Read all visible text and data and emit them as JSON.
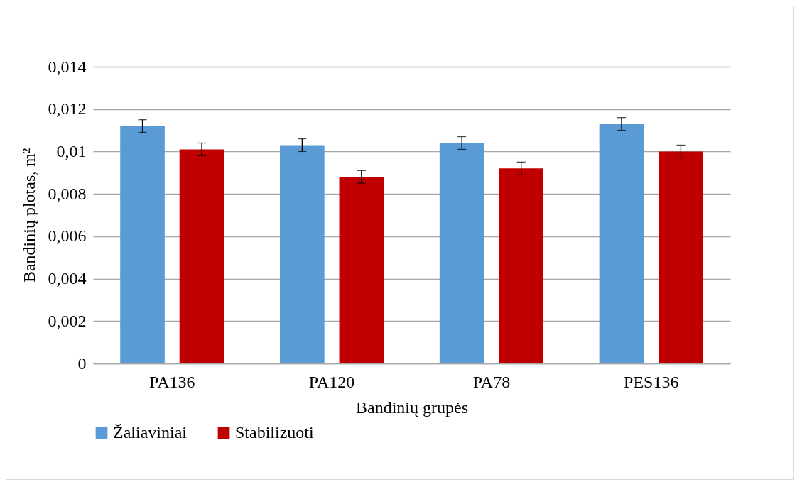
{
  "chart_data": {
    "type": "bar",
    "xlabel": "Bandinių grupės",
    "ylabel": "Bandinių plotas, m²",
    "categories": [
      "PA136",
      "PA120",
      "PA78",
      "PES136"
    ],
    "series": [
      {
        "name": "Žaliaviniai",
        "color": "#5b9bd5",
        "values": [
          0.0112,
          0.0103,
          0.0104,
          0.0113
        ],
        "errors": [
          0.0003,
          0.0003,
          0.0003,
          0.0003
        ]
      },
      {
        "name": "Stabilizuoti",
        "color": "#c00000",
        "values": [
          0.0101,
          0.0088,
          0.0092,
          0.01
        ],
        "errors": [
          0.0003,
          0.0003,
          0.0003,
          0.0003
        ]
      }
    ],
    "ylim": [
      0,
      0.014
    ],
    "yticks": [
      0,
      {
        "value": 0.002,
        "label": "0,002"
      },
      {
        "value": 0.004,
        "label": "0,004"
      },
      {
        "value": 0.006,
        "label": "0,006"
      },
      {
        "value": 0.008,
        "label": "0,008"
      },
      {
        "value": 0.01,
        "label": "0,01"
      },
      {
        "value": 0.012,
        "label": "0,012"
      },
      {
        "value": 0.014,
        "label": "0,014"
      }
    ],
    "grid": "y",
    "legend": "bottom"
  }
}
